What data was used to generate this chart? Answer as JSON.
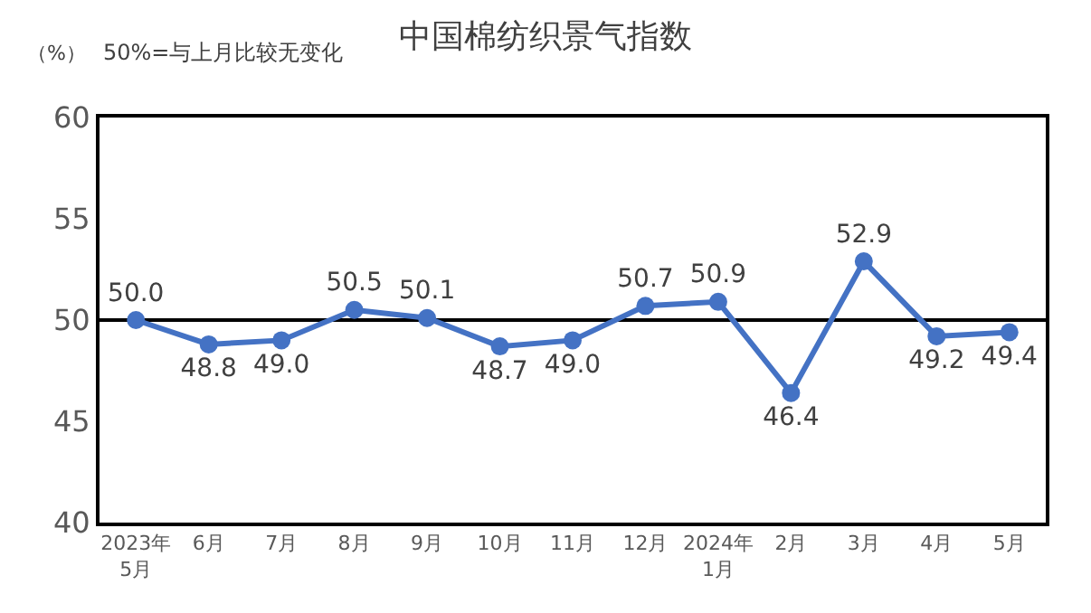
{
  "chart_data": {
    "type": "line",
    "title": "中国棉纺织景气指数",
    "subtitle": "50%=与上月比较无变化",
    "ylabel": "（%）",
    "categories": [
      "2023年\n5月",
      "6月",
      "7月",
      "8月",
      "9月",
      "10月",
      "11月",
      "12月",
      "2024年\n1月",
      "2月",
      "3月",
      "4月",
      "5月"
    ],
    "series": [
      {
        "color": "#4472c4",
        "values": [
          50.0,
          48.8,
          49.0,
          50.5,
          50.1,
          48.7,
          49.0,
          50.7,
          50.9,
          46.4,
          52.9,
          49.2,
          49.4
        ],
        "value_labels": [
          "50.0",
          "48.8",
          "49.0",
          "50.5",
          "50.1",
          "48.7",
          "49.0",
          "50.7",
          "50.9",
          "46.4",
          "52.9",
          "49.2",
          "49.4"
        ]
      }
    ],
    "ylim": [
      40,
      60
    ],
    "yticks": [
      40,
      45,
      50,
      55,
      60
    ],
    "grid": false,
    "marker": "circle",
    "line_style": "solid",
    "ref_lines": [
      {
        "axis": "y",
        "value": 50,
        "color": "#000000",
        "line_style": "solid"
      }
    ]
  }
}
